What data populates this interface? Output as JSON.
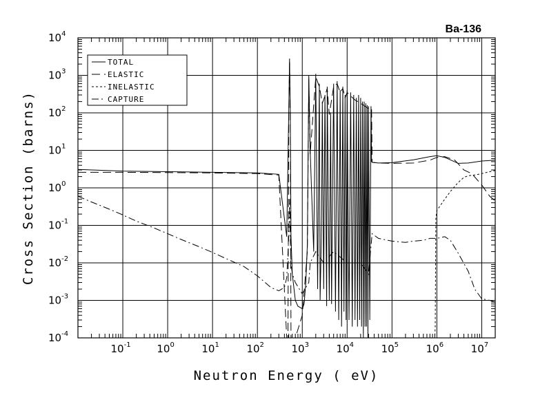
{
  "chart_data": {
    "type": "line",
    "title": "Ba-136",
    "xlabel": "Neutron Energy ( eV)",
    "ylabel": "Cross Section (barns)",
    "x_scale": "log",
    "y_scale": "log",
    "xlim": [
      0.01,
      20000000
    ],
    "ylim": [
      0.0001,
      10000
    ],
    "grid": true,
    "legend_position": "top-left",
    "x_ticks": [
      {
        "base": "10",
        "exp": "-1",
        "value": 0.1
      },
      {
        "base": "10",
        "exp": "0",
        "value": 1
      },
      {
        "base": "10",
        "exp": "1",
        "value": 10
      },
      {
        "base": "10",
        "exp": "2",
        "value": 100
      },
      {
        "base": "10",
        "exp": "3",
        "value": 1000
      },
      {
        "base": "10",
        "exp": "4",
        "value": 10000
      },
      {
        "base": "10",
        "exp": "5",
        "value": 100000
      },
      {
        "base": "10",
        "exp": "6",
        "value": 1000000
      },
      {
        "base": "10",
        "exp": "7",
        "value": 10000000
      }
    ],
    "y_ticks": [
      {
        "base": "10",
        "exp": "-4",
        "value": 0.0001
      },
      {
        "base": "10",
        "exp": "-3",
        "value": 0.001
      },
      {
        "base": "10",
        "exp": "-2",
        "value": 0.01
      },
      {
        "base": "10",
        "exp": "-1",
        "value": 0.1
      },
      {
        "base": "10",
        "exp": "0",
        "value": 1
      },
      {
        "base": "10",
        "exp": "1",
        "value": 10
      },
      {
        "base": "10",
        "exp": "2",
        "value": 100
      },
      {
        "base": "10",
        "exp": "3",
        "value": 1000
      },
      {
        "base": "10",
        "exp": "4",
        "value": 10000
      }
    ],
    "series": [
      {
        "name": "TOTAL",
        "dash": "solid",
        "x": [
          0.01,
          0.1,
          1,
          10,
          100,
          300,
          450,
          500,
          520,
          540,
          560,
          600,
          700,
          800,
          1000,
          1100,
          1200,
          1300,
          1400,
          1500,
          1800,
          2000,
          2200,
          2400,
          2500,
          2600,
          2700,
          2800,
          3000,
          3200,
          3500,
          3600,
          4000,
          4300,
          4500,
          5000,
          5500,
          6000,
          6500,
          7000,
          7500,
          8000,
          8500,
          9000,
          9500,
          10000,
          11000,
          12000,
          13000,
          14000,
          15000,
          16000,
          17000,
          18000,
          19000,
          20000,
          21000,
          22000,
          23000,
          24000,
          25000,
          26000,
          27000,
          28000,
          29000,
          30000,
          32000,
          34000,
          35000,
          36000,
          50000,
          100000,
          300000,
          700000,
          1000000,
          1500000,
          3000000,
          5000000,
          10000000,
          20000000
        ],
        "y": [
          3.1,
          2.8,
          2.7,
          2.6,
          2.5,
          2.3,
          0.05,
          130,
          2800,
          130,
          0.05,
          0.005,
          0.001,
          0.0007,
          0.0006,
          0.0008,
          0.003,
          0.03,
          1000,
          10,
          0.02,
          1100,
          0.002,
          600,
          0.001,
          0.01,
          0.2,
          200,
          0.002,
          300,
          0.0007,
          500,
          0.001,
          100,
          0.0008,
          600,
          0.0005,
          700,
          0.0003,
          400,
          0.0002,
          500,
          0.0005,
          300,
          0.0003,
          400,
          0.0003,
          350,
          0.0002,
          300,
          0.0003,
          250,
          0.0002,
          300,
          0.0003,
          250,
          0.0002,
          200,
          0.0001,
          200,
          0.0002,
          180,
          0.0002,
          160,
          0.0001,
          150,
          0.0003,
          150,
          5,
          4.8,
          4.6,
          4.7,
          5.6,
          6.8,
          7.2,
          6.5,
          4.5,
          4.6,
          5.2,
          5.5
        ]
      },
      {
        "name": "ELASTIC",
        "dash": "long-dash",
        "x": [
          0.01,
          0.1,
          1,
          10,
          100,
          300,
          450,
          480,
          500,
          520,
          540,
          560,
          600,
          700,
          1000,
          1300,
          1400,
          1500,
          2000,
          2400,
          2800,
          3200,
          3600,
          4000,
          5000,
          6000,
          7000,
          8000,
          9000,
          10000,
          12000,
          15000,
          20000,
          25000,
          30000,
          35000,
          36000,
          50000,
          100000,
          300000,
          700000,
          1000000,
          1500000,
          2500000,
          4000000,
          6000000,
          10000000,
          15000000,
          20000000
        ],
        "y": [
          2.6,
          2.6,
          2.55,
          2.5,
          2.4,
          2.2,
          0.0001,
          0.0001,
          100,
          2500,
          100,
          0.0001,
          0.0001,
          0.0001,
          0.0004,
          0.02,
          800,
          8,
          900,
          500,
          180,
          280,
          450,
          90,
          500,
          600,
          350,
          450,
          250,
          350,
          280,
          220,
          180,
          150,
          130,
          130,
          4.8,
          4.6,
          4.5,
          4.6,
          5.5,
          6.5,
          6.8,
          5.5,
          3.0,
          2.4,
          1.2,
          0.6,
          0.45
        ]
      },
      {
        "name": "INELASTIC",
        "dash": "short-dash",
        "x": [
          820000,
          900000,
          920000,
          950000,
          1000000,
          1500000,
          2000000,
          3000000,
          4000000,
          5000000,
          7000000,
          10000000,
          15000000,
          20000000
        ],
        "y": [
          0.0001,
          0.0001,
          0.0002,
          0.15,
          0.25,
          0.5,
          0.8,
          1.4,
          1.9,
          2.1,
          2.2,
          2.4,
          2.7,
          2.9
        ]
      },
      {
        "name": "CAPTURE",
        "dash": "dash-dot",
        "x": [
          0.01,
          0.02,
          0.05,
          0.1,
          0.2,
          0.5,
          1,
          2,
          5,
          10,
          20,
          50,
          100,
          200,
          300,
          400,
          450,
          500,
          520,
          540,
          560,
          600,
          700,
          1000,
          1400,
          1500,
          2000,
          3000,
          5000,
          10000,
          20000,
          30000,
          36000,
          50000,
          100000,
          200000,
          300000,
          500000,
          700000,
          1000000,
          1500000,
          2000000,
          3000000,
          5000000,
          7000000,
          10000000,
          15000000,
          20000000
        ],
        "y": [
          0.6,
          0.42,
          0.27,
          0.19,
          0.13,
          0.085,
          0.06,
          0.042,
          0.027,
          0.019,
          0.013,
          0.008,
          0.0045,
          0.0022,
          0.0018,
          0.0022,
          0.004,
          0.05,
          0.5,
          0.05,
          0.01,
          0.005,
          0.003,
          0.0015,
          0.003,
          0.01,
          0.02,
          0.01,
          0.02,
          0.01,
          0.01,
          0.005,
          0.06,
          0.045,
          0.038,
          0.035,
          0.038,
          0.04,
          0.045,
          0.045,
          0.05,
          0.04,
          0.018,
          0.006,
          0.002,
          0.0011,
          0.001,
          0.0009
        ]
      }
    ]
  }
}
